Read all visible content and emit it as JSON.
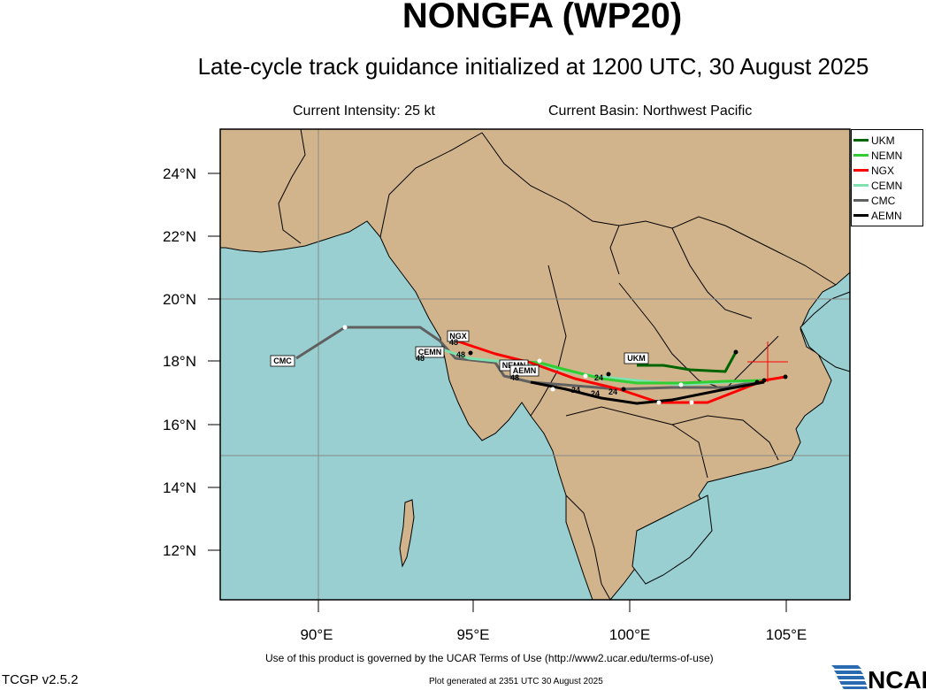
{
  "header": {
    "title": "NONGFA (WP20)",
    "subtitle": "Late-cycle track guidance initialized at 1200 UTC, 30 August 2025",
    "intensity": "Current Intensity: 25 kt",
    "basin": "Current Basin: Northwest Pacific"
  },
  "axes": {
    "lat_labels": [
      "24°N",
      "22°N",
      "20°N",
      "18°N",
      "16°N",
      "14°N",
      "12°N"
    ],
    "lon_labels": [
      "90°E",
      "95°E",
      "100°E",
      "105°E"
    ]
  },
  "legend": {
    "items": [
      {
        "name": "UKM",
        "color": "#006400"
      },
      {
        "name": "NEMN",
        "color": "#32cd32"
      },
      {
        "name": "NGX",
        "color": "#ff0000"
      },
      {
        "name": "CEMN",
        "color": "#7fe0b0"
      },
      {
        "name": "CMC",
        "color": "#606060"
      },
      {
        "name": "AEMN",
        "color": "#000000"
      }
    ]
  },
  "map": {
    "ocean_color": "#99cfd0",
    "land_color": "#d2b48c",
    "track_labels": [
      "CMC",
      "NGX",
      "CEMN",
      "NEMN",
      "AEMN",
      "UKM"
    ],
    "hour_tags": [
      "48",
      "48",
      "48",
      "48",
      "24",
      "24",
      "24",
      "24"
    ]
  },
  "footer": {
    "terms": "Use of this product is governed by the UCAR Terms of Use (http://www2.ucar.edu/terms-of-use)",
    "version": "TCGP v2.5.2",
    "generated": "Plot generated at 2351 UTC   30 August 2025",
    "logo": "NCAR"
  }
}
